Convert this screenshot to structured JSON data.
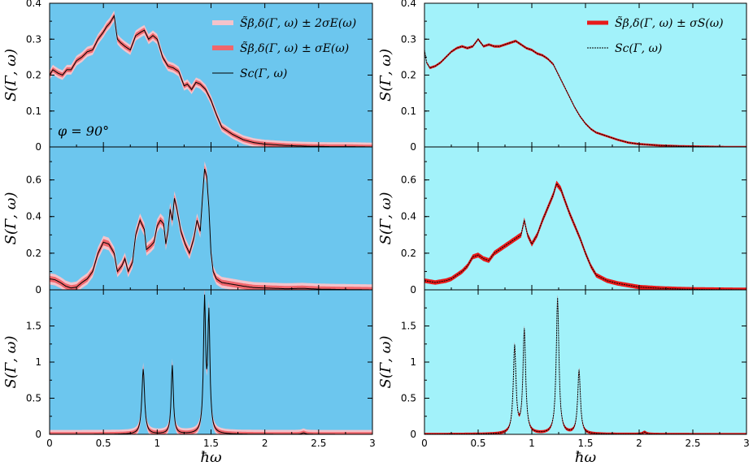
{
  "chart_data": {
    "type": "line",
    "xlabel": "ħω",
    "columns": [
      {
        "background": "#6cc6ee",
        "xlim": [
          0,
          3
        ],
        "xticks": [
          "0",
          "0.5",
          "1",
          "1.5",
          "2",
          "2.5",
          "3"
        ]
      },
      {
        "background": "#a2f2fa",
        "xlim": [
          0,
          3
        ],
        "xticks": [
          "0",
          "0.5",
          "1",
          "1.5",
          "2",
          "2.5",
          "3"
        ]
      }
    ],
    "panels": [
      {
        "col": 0,
        "row": 0,
        "ylabel": "S(Γ, ω)",
        "ylim": [
          0,
          0.4
        ],
        "yticks": [
          {
            "v": 0,
            "t": "0"
          },
          {
            "v": 0.1,
            "t": "0.1"
          },
          {
            "v": 0.2,
            "t": "0.2"
          },
          {
            "v": 0.3,
            "t": "0.3"
          },
          {
            "v": 0.4,
            "t": "0.4"
          }
        ],
        "annotation": "φ = 90°",
        "legend": [
          {
            "label": "S̃β,δ(Γ, ω) ± 2σE(ω)",
            "color": "#f4c3cb",
            "style": "band2"
          },
          {
            "label": "S̃β,δ(Γ, ω) ± σE(ω)",
            "color": "#f0666c",
            "style": "band1"
          },
          {
            "label": "Sc(Γ, ω)",
            "color": "#000000",
            "style": "solid"
          }
        ],
        "band1": 0.006,
        "band2": 0.012,
        "series": [
          {
            "name": "Sc(Γ, ω)",
            "x": [
              0,
              0.03,
              0.08,
              0.12,
              0.16,
              0.2,
              0.25,
              0.3,
              0.35,
              0.4,
              0.45,
              0.5,
              0.53,
              0.56,
              0.6,
              0.63,
              0.66,
              0.7,
              0.75,
              0.8,
              0.85,
              0.88,
              0.92,
              0.96,
              1.0,
              1.05,
              1.1,
              1.15,
              1.2,
              1.25,
              1.28,
              1.32,
              1.36,
              1.4,
              1.45,
              1.5,
              1.55,
              1.6,
              1.7,
              1.8,
              1.9,
              2.0,
              2.2,
              2.4,
              2.6,
              2.8,
              3.0
            ],
            "y": [
              0.2,
              0.215,
              0.205,
              0.2,
              0.215,
              0.215,
              0.24,
              0.25,
              0.265,
              0.27,
              0.3,
              0.32,
              0.335,
              0.345,
              0.365,
              0.3,
              0.29,
              0.28,
              0.27,
              0.31,
              0.32,
              0.325,
              0.3,
              0.31,
              0.3,
              0.25,
              0.225,
              0.22,
              0.21,
              0.17,
              0.175,
              0.16,
              0.18,
              0.175,
              0.16,
              0.13,
              0.09,
              0.055,
              0.035,
              0.02,
              0.012,
              0.008,
              0.004,
              0.002,
              0.001,
              0.001,
              0.0
            ]
          }
        ]
      },
      {
        "col": 0,
        "row": 1,
        "ylabel": "S(Γ, ω)",
        "ylim": [
          0,
          0.78
        ],
        "yticks": [
          {
            "v": 0,
            "t": "0"
          },
          {
            "v": 0.2,
            "t": "0.2"
          },
          {
            "v": 0.4,
            "t": "0.4"
          },
          {
            "v": 0.6,
            "t": "0.6"
          }
        ],
        "band1": 0.015,
        "band2": 0.03,
        "series": [
          {
            "name": "Sc(Γ, ω)",
            "x": [
              0,
              0.05,
              0.1,
              0.15,
              0.2,
              0.25,
              0.3,
              0.35,
              0.4,
              0.45,
              0.5,
              0.55,
              0.6,
              0.63,
              0.67,
              0.7,
              0.73,
              0.77,
              0.8,
              0.84,
              0.88,
              0.9,
              0.94,
              0.97,
              1.0,
              1.03,
              1.06,
              1.08,
              1.1,
              1.12,
              1.14,
              1.16,
              1.18,
              1.22,
              1.26,
              1.3,
              1.34,
              1.37,
              1.4,
              1.42,
              1.44,
              1.46,
              1.48,
              1.5,
              1.52,
              1.55,
              1.6,
              1.7,
              1.8,
              1.9,
              2.0,
              2.2,
              2.35,
              2.5,
              2.7,
              3.0
            ],
            "y": [
              0.06,
              0.055,
              0.04,
              0.02,
              0.01,
              0.015,
              0.04,
              0.06,
              0.1,
              0.2,
              0.26,
              0.25,
              0.2,
              0.1,
              0.13,
              0.17,
              0.1,
              0.15,
              0.3,
              0.38,
              0.33,
              0.22,
              0.24,
              0.26,
              0.35,
              0.38,
              0.36,
              0.25,
              0.32,
              0.44,
              0.38,
              0.5,
              0.45,
              0.32,
              0.25,
              0.2,
              0.28,
              0.38,
              0.32,
              0.5,
              0.66,
              0.62,
              0.45,
              0.2,
              0.1,
              0.06,
              0.04,
              0.03,
              0.02,
              0.012,
              0.01,
              0.006,
              0.008,
              0.004,
              0.002,
              0.0
            ]
          }
        ]
      },
      {
        "col": 0,
        "row": 2,
        "ylabel": "S(Γ, ω)",
        "ylim": [
          0,
          2.0
        ],
        "yticks": [
          {
            "v": 0,
            "t": "0"
          },
          {
            "v": 0.5,
            "t": "0.5"
          },
          {
            "v": 1,
            "t": "1"
          },
          {
            "v": 1.5,
            "t": "1.5"
          }
        ],
        "band1": 0.03,
        "band2": 0.06,
        "peaks": [
          {
            "center": 0.87,
            "height": 0.9,
            "width": 0.015
          },
          {
            "center": 1.14,
            "height": 0.95,
            "width": 0.012
          },
          {
            "center": 1.44,
            "height": 1.8,
            "width": 0.012
          },
          {
            "center": 1.48,
            "height": 1.6,
            "width": 0.012
          },
          {
            "center": 2.36,
            "height": 0.02,
            "width": 0.02
          }
        ],
        "series": [
          {
            "name": "Sc(Γ, ω)",
            "x": [
              0.0,
              3.0
            ],
            "y": [
              0.0,
              0.0
            ]
          }
        ]
      },
      {
        "col": 1,
        "row": 0,
        "ylabel": "S(Γ, ω)",
        "ylim": [
          0,
          0.4
        ],
        "yticks": [
          {
            "v": 0,
            "t": "0"
          },
          {
            "v": 0.1,
            "t": "0.1"
          },
          {
            "v": 0.2,
            "t": "0.2"
          },
          {
            "v": 0.3,
            "t": "0.3"
          },
          {
            "v": 0.4,
            "t": "0.4"
          }
        ],
        "legend": [
          {
            "label": "S̃β,δ(Γ, ω) ± σS(ω)",
            "color": "#e81a1a",
            "style": "band1"
          },
          {
            "label": "Sc(Γ, ω)",
            "color": "#000000",
            "style": "dashed"
          }
        ],
        "band1": 0.003,
        "series": [
          {
            "name": "Sc(Γ, ω)",
            "x": [
              0,
              0.02,
              0.05,
              0.1,
              0.15,
              0.2,
              0.25,
              0.3,
              0.35,
              0.4,
              0.45,
              0.5,
              0.55,
              0.6,
              0.65,
              0.7,
              0.75,
              0.8,
              0.85,
              0.9,
              0.95,
              1.0,
              1.05,
              1.1,
              1.15,
              1.2,
              1.25,
              1.3,
              1.35,
              1.4,
              1.45,
              1.5,
              1.55,
              1.6,
              1.7,
              1.8,
              1.9,
              2.0,
              2.2,
              2.4,
              2.6,
              2.8,
              3.0
            ],
            "y": [
              0.27,
              0.235,
              0.22,
              0.225,
              0.235,
              0.25,
              0.265,
              0.275,
              0.28,
              0.275,
              0.28,
              0.3,
              0.28,
              0.285,
              0.28,
              0.28,
              0.285,
              0.29,
              0.295,
              0.285,
              0.275,
              0.27,
              0.26,
              0.255,
              0.245,
              0.23,
              0.2,
              0.17,
              0.14,
              0.11,
              0.085,
              0.065,
              0.05,
              0.04,
              0.03,
              0.02,
              0.012,
              0.008,
              0.004,
              0.002,
              0.001,
              0.0,
              0.0
            ]
          }
        ]
      },
      {
        "col": 1,
        "row": 1,
        "ylabel": "S(Γ, ω)",
        "ylim": [
          0,
          0.78
        ],
        "yticks": [
          {
            "v": 0,
            "t": "0"
          },
          {
            "v": 0.2,
            "t": "0.2"
          },
          {
            "v": 0.4,
            "t": "0.4"
          },
          {
            "v": 0.6,
            "t": "0.6"
          }
        ],
        "band1": 0.012,
        "series": [
          {
            "name": "Sc(Γ, ω)",
            "x": [
              0,
              0.05,
              0.1,
              0.15,
              0.2,
              0.25,
              0.3,
              0.35,
              0.4,
              0.45,
              0.5,
              0.55,
              0.6,
              0.65,
              0.7,
              0.75,
              0.8,
              0.85,
              0.9,
              0.93,
              0.96,
              1.0,
              1.05,
              1.1,
              1.15,
              1.2,
              1.23,
              1.27,
              1.3,
              1.35,
              1.4,
              1.45,
              1.5,
              1.55,
              1.6,
              1.7,
              1.8,
              1.9,
              2.0,
              2.2,
              2.4,
              2.6,
              2.8,
              3.0
            ],
            "y": [
              0.05,
              0.045,
              0.04,
              0.045,
              0.05,
              0.06,
              0.08,
              0.1,
              0.13,
              0.18,
              0.19,
              0.17,
              0.16,
              0.2,
              0.22,
              0.24,
              0.26,
              0.28,
              0.3,
              0.38,
              0.3,
              0.25,
              0.3,
              0.38,
              0.45,
              0.52,
              0.58,
              0.55,
              0.5,
              0.42,
              0.35,
              0.28,
              0.2,
              0.13,
              0.08,
              0.05,
              0.035,
              0.025,
              0.015,
              0.008,
              0.004,
              0.002,
              0.001,
              0.0
            ]
          }
        ]
      },
      {
        "col": 1,
        "row": 2,
        "ylabel": "S(Γ, ω)",
        "ylim": [
          0,
          2.0
        ],
        "yticks": [
          {
            "v": 0,
            "t": "0"
          },
          {
            "v": 0.5,
            "t": "0.5"
          },
          {
            "v": 1,
            "t": "1"
          },
          {
            "v": 1.5,
            "t": "1.5"
          }
        ],
        "band1": 0.02,
        "peaks": [
          {
            "center": 0.84,
            "height": 1.2,
            "width": 0.015
          },
          {
            "center": 0.93,
            "height": 1.43,
            "width": 0.015
          },
          {
            "center": 1.24,
            "height": 1.88,
            "width": 0.015
          },
          {
            "center": 1.44,
            "height": 0.88,
            "width": 0.015
          },
          {
            "center": 2.05,
            "height": 0.03,
            "width": 0.02
          }
        ],
        "series": [
          {
            "name": "Sc(Γ, ω)",
            "x": [
              0.0,
              3.0
            ],
            "y": [
              0.0,
              0.0
            ]
          }
        ]
      }
    ]
  }
}
